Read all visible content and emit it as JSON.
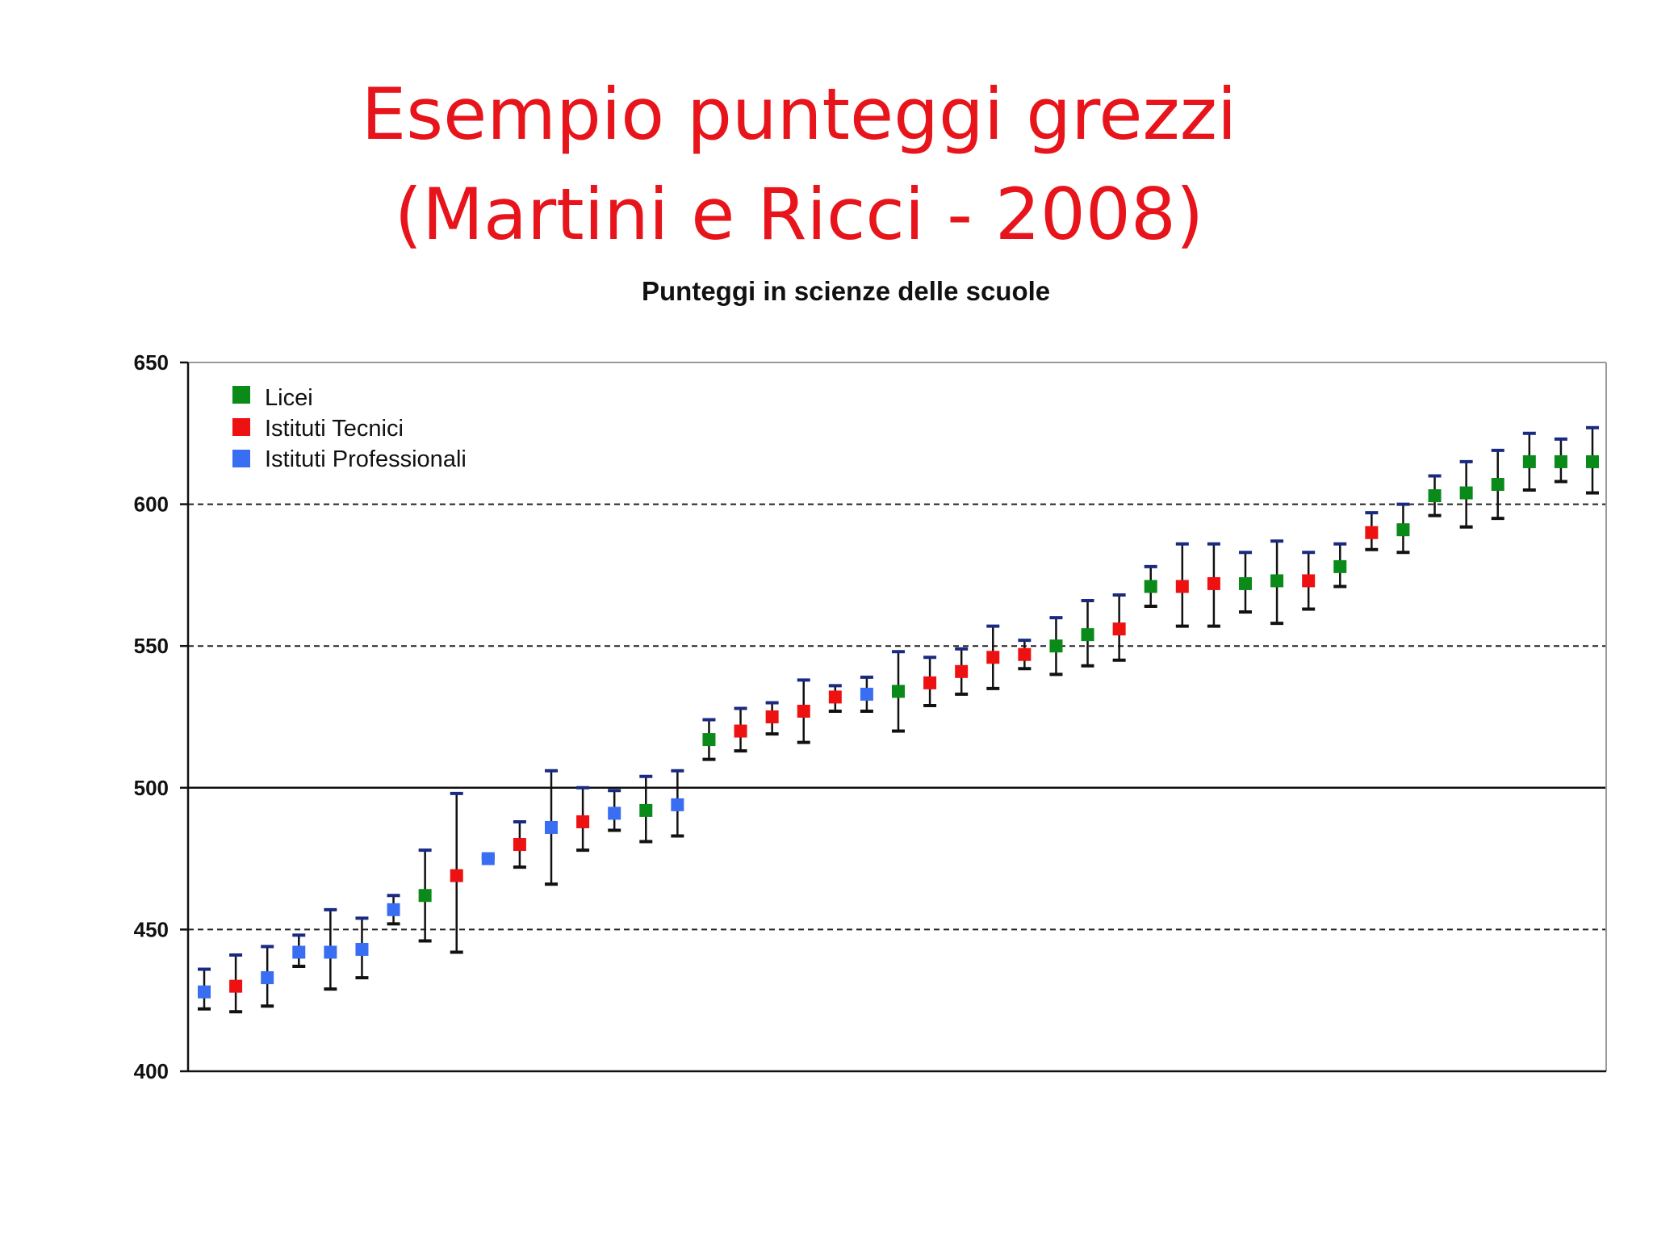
{
  "slide": {
    "title_line1": "Esempio punteggi grezzi",
    "title_line2": "(Martini e Ricci - 2008)"
  },
  "colors": {
    "title": "#e8141b",
    "Licei": "#0a8a18",
    "Istituti Tecnici": "#ee1111",
    "Istituti Professionali": "#3a6ef2",
    "cap_upper": "#1a2a80",
    "whisker": "#111111"
  },
  "chart_data": {
    "type": "scatter",
    "title": "Punteggi in scienze delle scuole",
    "xlabel": "",
    "ylabel": "",
    "ylim": [
      400,
      650
    ],
    "yticks": [
      400,
      450,
      500,
      550,
      600,
      650
    ],
    "grid": {
      "dashed_lines": [
        450,
        550,
        600
      ],
      "solid_line": 500
    },
    "legend": {
      "position": "top-left",
      "entries": [
        "Licei",
        "Istituti Tecnici",
        "Istituti Professionali"
      ]
    },
    "error_bars": true,
    "points": [
      {
        "type": "Istituti Professionali",
        "y": 428,
        "lo": 422,
        "hi": 436
      },
      {
        "type": "Istituti Tecnici",
        "y": 430,
        "lo": 421,
        "hi": 441
      },
      {
        "type": "Istituti Professionali",
        "y": 433,
        "lo": 423,
        "hi": 444
      },
      {
        "type": "Istituti Professionali",
        "y": 442,
        "lo": 437,
        "hi": 448
      },
      {
        "type": "Istituti Professionali",
        "y": 442,
        "lo": 429,
        "hi": 457
      },
      {
        "type": "Istituti Professionali",
        "y": 443,
        "lo": 433,
        "hi": 454
      },
      {
        "type": "Istituti Professionali",
        "y": 457,
        "lo": 452,
        "hi": 462
      },
      {
        "type": "Licei",
        "y": 462,
        "lo": 446,
        "hi": 478
      },
      {
        "type": "Istituti Tecnici",
        "y": 469,
        "lo": 442,
        "hi": 498
      },
      {
        "type": "Istituti Professionali",
        "y": 475,
        "lo": 475,
        "hi": 476
      },
      {
        "type": "Istituti Tecnici",
        "y": 480,
        "lo": 472,
        "hi": 488
      },
      {
        "type": "Istituti Professionali",
        "y": 486,
        "lo": 466,
        "hi": 506
      },
      {
        "type": "Istituti Tecnici",
        "y": 488,
        "lo": 478,
        "hi": 500
      },
      {
        "type": "Istituti Professionali",
        "y": 491,
        "lo": 485,
        "hi": 499
      },
      {
        "type": "Licei",
        "y": 492,
        "lo": 481,
        "hi": 504
      },
      {
        "type": "Istituti Professionali",
        "y": 494,
        "lo": 483,
        "hi": 506
      },
      {
        "type": "Licei",
        "y": 517,
        "lo": 510,
        "hi": 524
      },
      {
        "type": "Istituti Tecnici",
        "y": 520,
        "lo": 513,
        "hi": 528
      },
      {
        "type": "Istituti Tecnici",
        "y": 525,
        "lo": 519,
        "hi": 530
      },
      {
        "type": "Istituti Tecnici",
        "y": 527,
        "lo": 516,
        "hi": 538
      },
      {
        "type": "Istituti Tecnici",
        "y": 532,
        "lo": 527,
        "hi": 536
      },
      {
        "type": "Istituti Professionali",
        "y": 533,
        "lo": 527,
        "hi": 539
      },
      {
        "type": "Licei",
        "y": 534,
        "lo": 520,
        "hi": 548
      },
      {
        "type": "Istituti Tecnici",
        "y": 537,
        "lo": 529,
        "hi": 546
      },
      {
        "type": "Istituti Tecnici",
        "y": 541,
        "lo": 533,
        "hi": 549
      },
      {
        "type": "Istituti Tecnici",
        "y": 546,
        "lo": 535,
        "hi": 557
      },
      {
        "type": "Istituti Tecnici",
        "y": 547,
        "lo": 542,
        "hi": 552
      },
      {
        "type": "Licei",
        "y": 550,
        "lo": 540,
        "hi": 560
      },
      {
        "type": "Licei",
        "y": 554,
        "lo": 543,
        "hi": 566
      },
      {
        "type": "Istituti Tecnici",
        "y": 556,
        "lo": 545,
        "hi": 568
      },
      {
        "type": "Licei",
        "y": 571,
        "lo": 564,
        "hi": 578
      },
      {
        "type": "Istituti Tecnici",
        "y": 571,
        "lo": 557,
        "hi": 586
      },
      {
        "type": "Istituti Tecnici",
        "y": 572,
        "lo": 557,
        "hi": 586
      },
      {
        "type": "Licei",
        "y": 572,
        "lo": 562,
        "hi": 583
      },
      {
        "type": "Licei",
        "y": 573,
        "lo": 558,
        "hi": 587
      },
      {
        "type": "Istituti Tecnici",
        "y": 573,
        "lo": 563,
        "hi": 583
      },
      {
        "type": "Licei",
        "y": 578,
        "lo": 571,
        "hi": 586
      },
      {
        "type": "Istituti Tecnici",
        "y": 590,
        "lo": 584,
        "hi": 597
      },
      {
        "type": "Licei",
        "y": 591,
        "lo": 583,
        "hi": 600
      },
      {
        "type": "Licei",
        "y": 603,
        "lo": 596,
        "hi": 610
      },
      {
        "type": "Licei",
        "y": 604,
        "lo": 592,
        "hi": 615
      },
      {
        "type": "Licei",
        "y": 607,
        "lo": 595,
        "hi": 619
      },
      {
        "type": "Licei",
        "y": 615,
        "lo": 605,
        "hi": 625
      },
      {
        "type": "Licei",
        "y": 615,
        "lo": 608,
        "hi": 623
      },
      {
        "type": "Licei",
        "y": 615,
        "lo": 604,
        "hi": 627
      }
    ]
  }
}
